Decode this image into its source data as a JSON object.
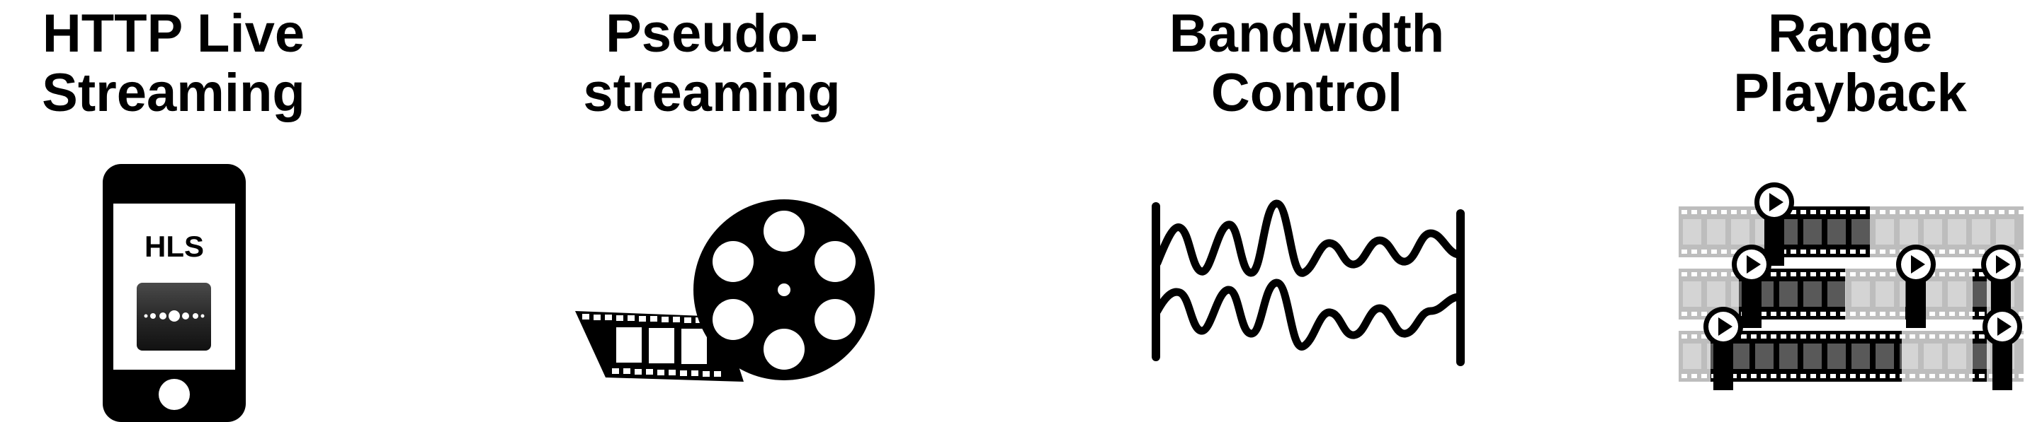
{
  "features": [
    {
      "id": "hls",
      "title_line1": "HTTP Live",
      "title_line2": "Streaming",
      "icon": "smartphone-hls-icon",
      "badge_text": "HLS"
    },
    {
      "id": "pseudo",
      "title_line1": "Pseudo-",
      "title_line2": "streaming",
      "icon": "film-reel-icon"
    },
    {
      "id": "bandwidth",
      "title_line1": "Bandwidth",
      "title_line2": "Control",
      "icon": "waveform-icon"
    },
    {
      "id": "range",
      "title_line1": "Range",
      "title_line2": "Playback",
      "icon": "filmstrip-play-icon"
    }
  ],
  "colors": {
    "ink": "#000000",
    "background": "#ffffff",
    "film_gray": "#bdbdbd",
    "button_dark": "#2b2b2b"
  }
}
